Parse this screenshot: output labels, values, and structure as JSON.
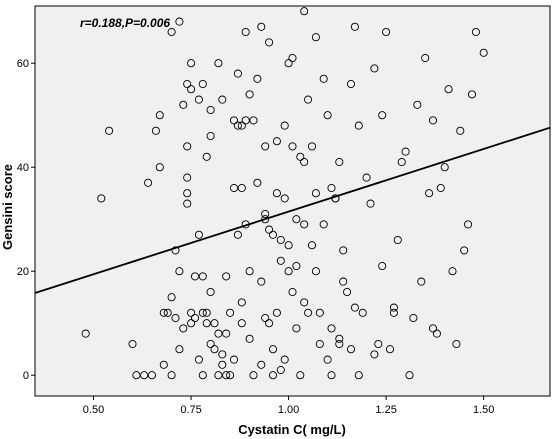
{
  "chart_data": {
    "type": "scatter",
    "title": "",
    "xlabel": "Cystatin C( mg/L)",
    "ylabel": "Gensini score",
    "annotation": "r=0.188,P=0.006",
    "xlim": [
      0.35,
      1.67
    ],
    "ylim": [
      -4,
      71
    ],
    "x_ticks": [
      0.5,
      0.75,
      1.0,
      1.25,
      1.5
    ],
    "x_tick_labels": [
      "0.50",
      "0.75",
      "1.00",
      "1.25",
      "1.50"
    ],
    "y_ticks": [
      0,
      20,
      40,
      60
    ],
    "y_tick_labels": [
      "0",
      "20",
      "40",
      "60"
    ],
    "grid": false,
    "background_color": "#f0f0f0",
    "marker": "open-circle",
    "fit_line": {
      "x": [
        0.35,
        1.67
      ],
      "y": [
        15.8,
        47.6
      ]
    },
    "points": [
      [
        0.48,
        8
      ],
      [
        0.52,
        34
      ],
      [
        0.54,
        47
      ],
      [
        0.6,
        6
      ],
      [
        0.61,
        0
      ],
      [
        0.63,
        0
      ],
      [
        0.64,
        37
      ],
      [
        0.65,
        0
      ],
      [
        0.66,
        47
      ],
      [
        0.67,
        50
      ],
      [
        0.67,
        40
      ],
      [
        0.68,
        12
      ],
      [
        0.68,
        2
      ],
      [
        0.69,
        12
      ],
      [
        0.7,
        15
      ],
      [
        0.7,
        0
      ],
      [
        0.7,
        66
      ],
      [
        0.71,
        11
      ],
      [
        0.71,
        24
      ],
      [
        0.72,
        20
      ],
      [
        0.72,
        5
      ],
      [
        0.72,
        68
      ],
      [
        0.73,
        9
      ],
      [
        0.73,
        52
      ],
      [
        0.74,
        56
      ],
      [
        0.74,
        38
      ],
      [
        0.74,
        33
      ],
      [
        0.74,
        35
      ],
      [
        0.74,
        44
      ],
      [
        0.75,
        55
      ],
      [
        0.75,
        60
      ],
      [
        0.75,
        12
      ],
      [
        0.75,
        10
      ],
      [
        0.76,
        19
      ],
      [
        0.76,
        11
      ],
      [
        0.77,
        27
      ],
      [
        0.77,
        3
      ],
      [
        0.77,
        53
      ],
      [
        0.78,
        12
      ],
      [
        0.78,
        19
      ],
      [
        0.78,
        0
      ],
      [
        0.78,
        56
      ],
      [
        0.79,
        10
      ],
      [
        0.79,
        12
      ],
      [
        0.79,
        42
      ],
      [
        0.8,
        46
      ],
      [
        0.8,
        6
      ],
      [
        0.8,
        51
      ],
      [
        0.8,
        16
      ],
      [
        0.81,
        10
      ],
      [
        0.81,
        5
      ],
      [
        0.82,
        8
      ],
      [
        0.82,
        60
      ],
      [
        0.82,
        0
      ],
      [
        0.83,
        2
      ],
      [
        0.83,
        4
      ],
      [
        0.83,
        53
      ],
      [
        0.84,
        0
      ],
      [
        0.84,
        8
      ],
      [
        0.84,
        19
      ],
      [
        0.85,
        0
      ],
      [
        0.85,
        12
      ],
      [
        0.86,
        36
      ],
      [
        0.86,
        49
      ],
      [
        0.86,
        3
      ],
      [
        0.87,
        58
      ],
      [
        0.87,
        48
      ],
      [
        0.87,
        27
      ],
      [
        0.88,
        48
      ],
      [
        0.88,
        10
      ],
      [
        0.88,
        14
      ],
      [
        0.88,
        36
      ],
      [
        0.89,
        66
      ],
      [
        0.89,
        49
      ],
      [
        0.89,
        29
      ],
      [
        0.9,
        54
      ],
      [
        0.9,
        7
      ],
      [
        0.9,
        20
      ],
      [
        0.91,
        0
      ],
      [
        0.91,
        49
      ],
      [
        0.92,
        37
      ],
      [
        0.92,
        57
      ],
      [
        0.93,
        67
      ],
      [
        0.93,
        2
      ],
      [
        0.93,
        18
      ],
      [
        0.94,
        30
      ],
      [
        0.94,
        31
      ],
      [
        0.94,
        11
      ],
      [
        0.94,
        44
      ],
      [
        0.95,
        10
      ],
      [
        0.95,
        28
      ],
      [
        0.95,
        64
      ],
      [
        0.96,
        27
      ],
      [
        0.96,
        5
      ],
      [
        0.96,
        0
      ],
      [
        0.97,
        35
      ],
      [
        0.97,
        12
      ],
      [
        0.97,
        45
      ],
      [
        0.98,
        22
      ],
      [
        0.98,
        26
      ],
      [
        0.98,
        1
      ],
      [
        0.99,
        34
      ],
      [
        0.99,
        48
      ],
      [
        0.99,
        3
      ],
      [
        1.0,
        25
      ],
      [
        1.0,
        20
      ],
      [
        1.0,
        60
      ],
      [
        1.01,
        61
      ],
      [
        1.01,
        44
      ],
      [
        1.01,
        16
      ],
      [
        1.02,
        9
      ],
      [
        1.02,
        21
      ],
      [
        1.02,
        30
      ],
      [
        1.03,
        42
      ],
      [
        1.03,
        0
      ],
      [
        1.04,
        70
      ],
      [
        1.04,
        14
      ],
      [
        1.04,
        29
      ],
      [
        1.05,
        53
      ],
      [
        1.05,
        12
      ],
      [
        1.06,
        25
      ],
      [
        1.06,
        44
      ],
      [
        1.07,
        65
      ],
      [
        1.07,
        35
      ],
      [
        1.07,
        20
      ],
      [
        1.08,
        6
      ],
      [
        1.08,
        12
      ],
      [
        1.09,
        57
      ],
      [
        1.09,
        29
      ],
      [
        1.1,
        50
      ],
      [
        1.1,
        3
      ],
      [
        1.11,
        9
      ],
      [
        1.11,
        0
      ],
      [
        1.12,
        34
      ],
      [
        1.12,
        34
      ],
      [
        1.13,
        41
      ],
      [
        1.13,
        6
      ],
      [
        1.14,
        24
      ],
      [
        1.14,
        18
      ],
      [
        1.15,
        16
      ],
      [
        1.16,
        5
      ],
      [
        1.16,
        56
      ],
      [
        1.17,
        13
      ],
      [
        1.17,
        67
      ],
      [
        1.18,
        48
      ],
      [
        1.18,
        0
      ],
      [
        1.19,
        12
      ],
      [
        1.2,
        38
      ],
      [
        1.21,
        33
      ],
      [
        1.22,
        59
      ],
      [
        1.22,
        4
      ],
      [
        1.23,
        6
      ],
      [
        1.24,
        50
      ],
      [
        1.24,
        21
      ],
      [
        1.25,
        66
      ],
      [
        1.26,
        5
      ],
      [
        1.27,
        12
      ],
      [
        1.27,
        13
      ],
      [
        1.28,
        26
      ],
      [
        1.29,
        41
      ],
      [
        1.3,
        43
      ],
      [
        1.31,
        0
      ],
      [
        1.32,
        11
      ],
      [
        1.33,
        52
      ],
      [
        1.34,
        18
      ],
      [
        1.35,
        61
      ],
      [
        1.36,
        35
      ],
      [
        1.37,
        49
      ],
      [
        1.38,
        8
      ],
      [
        1.39,
        36
      ],
      [
        1.4,
        40
      ],
      [
        1.41,
        55
      ],
      [
        1.42,
        20
      ],
      [
        1.43,
        6
      ],
      [
        1.44,
        47
      ],
      [
        1.45,
        24
      ],
      [
        1.46,
        29
      ],
      [
        1.47,
        54
      ],
      [
        1.48,
        66
      ],
      [
        1.5,
        62
      ],
      [
        1.37,
        9
      ],
      [
        1.13,
        7
      ],
      [
        1.11,
        36
      ],
      [
        1.04,
        41
      ]
    ]
  }
}
